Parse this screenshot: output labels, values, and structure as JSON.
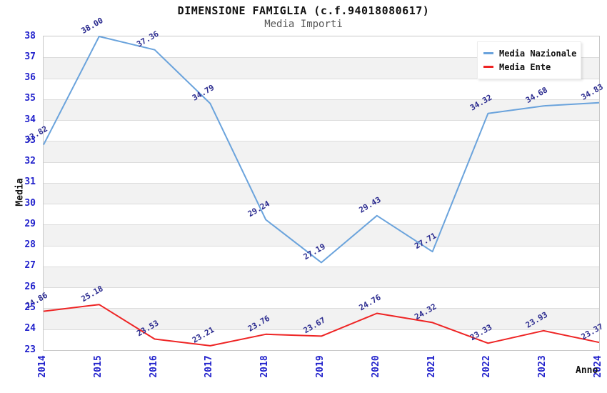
{
  "header": {
    "title": "DIMENSIONE FAMIGLIA (c.f.94018080617)",
    "subtitle": "Media Importi"
  },
  "chart_data": {
    "type": "line",
    "title": "DIMENSIONE FAMIGLIA (c.f.94018080617)",
    "subtitle": "Media Importi",
    "xlabel": "Anno",
    "ylabel": "Media",
    "x": [
      2014,
      2015,
      2016,
      2017,
      2018,
      2019,
      2020,
      2021,
      2022,
      2023,
      2024
    ],
    "series": [
      {
        "name": "Media Nazionale",
        "color": "#6aa3dc",
        "values": [
          32.82,
          38.0,
          37.36,
          34.79,
          29.24,
          27.19,
          29.43,
          27.71,
          34.32,
          34.68,
          34.83
        ]
      },
      {
        "name": "Media Ente",
        "color": "#ee2424",
        "values": [
          24.86,
          25.18,
          23.53,
          23.21,
          23.76,
          23.67,
          24.76,
          24.32,
          23.33,
          23.93,
          23.37
        ]
      }
    ],
    "ylim": [
      23,
      38
    ],
    "ytick_step": 1,
    "label_decimals": 2,
    "grid": true,
    "banded_background": true,
    "legend_position": "top-right",
    "colors": {
      "tick_label": "#2222cc",
      "value_label": "#2b2b8f",
      "band": "#f2f2f2",
      "grid": "#dcdcdc",
      "plot_border": "#c9c9c9",
      "title": "#111111",
      "subtitle": "#555555"
    }
  }
}
